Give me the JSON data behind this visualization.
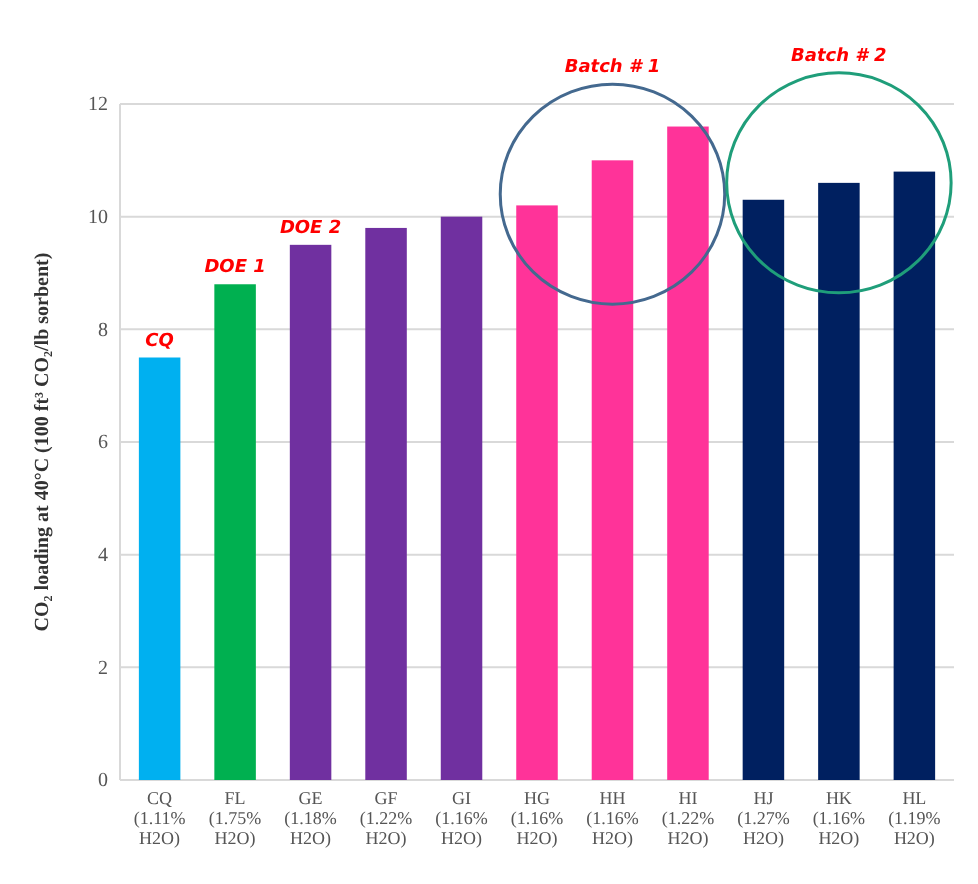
{
  "chart_data": {
    "type": "bar",
    "ylabel": "CO₂ loading at 40°C (100 ft³ CO₂/lb sorbent)",
    "categories": [
      "CQ (1.11% H2O)",
      "FL (1.75% H2O)",
      "GE (1.18% H2O)",
      "GF (1.22% H2O)",
      "GI (1.16% H2O)",
      "HG (1.16% H2O)",
      "HH (1.16% H2O)",
      "HI (1.22% H2O)",
      "HJ (1.27% H2O)",
      "HK (1.16% H2O)",
      "HL (1.19% H2O)"
    ],
    "values": [
      7.5,
      8.8,
      9.5,
      9.8,
      10.0,
      10.2,
      11.0,
      11.6,
      10.3,
      10.6,
      10.8
    ],
    "colors": [
      "#00b0f0",
      "#00b050",
      "#7030a0",
      "#7030a0",
      "#7030a0",
      "#ff3399",
      "#ff3399",
      "#ff3399",
      "#002060",
      "#002060",
      "#002060"
    ],
    "ylim": [
      0,
      12
    ],
    "yticks": [
      0,
      2,
      4,
      6,
      8,
      10,
      12
    ],
    "grid": "y",
    "annotations": [
      {
        "text": "CQ",
        "x": "CQ (1.11% H2O)",
        "y": 7.5
      },
      {
        "text": "DOE 1",
        "x": "FL (1.75% H2O)",
        "y": 8.8
      },
      {
        "text": "DOE 2",
        "x": "GE (1.18% H2O)",
        "y": 9.5
      },
      "Batch # 1",
      "Batch # 2"
    ]
  }
}
